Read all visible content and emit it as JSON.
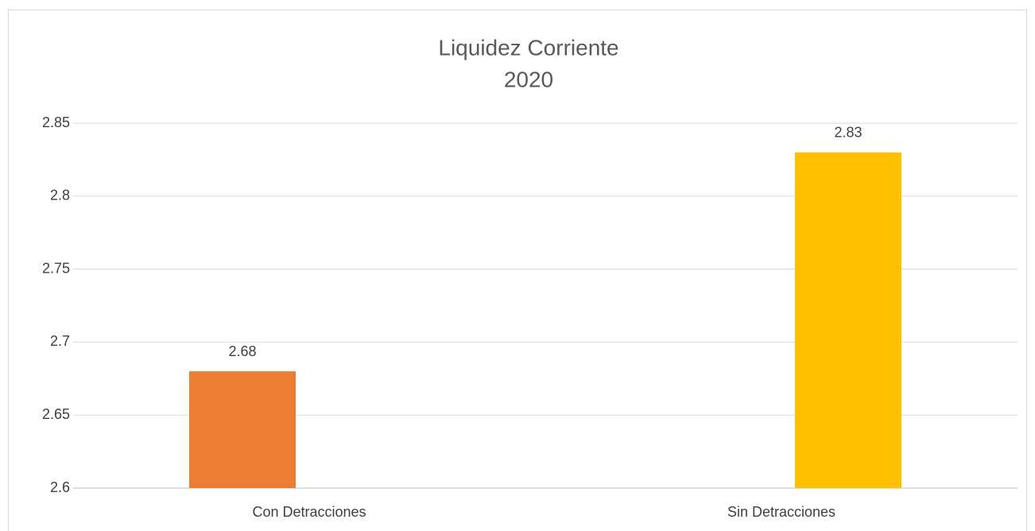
{
  "chart_data": {
    "type": "bar",
    "title": "Liquidez Corriente",
    "subtitle": "2020",
    "categories": [
      "Con Detracciones",
      "Sin Detracciones"
    ],
    "series": [
      {
        "color": "#ed7d31",
        "values": [
          2.68,
          null
        ]
      },
      {
        "color": "#ffc000",
        "values": [
          null,
          2.83
        ]
      }
    ],
    "ylim": [
      2.6,
      2.85
    ],
    "yticks": [
      2.6,
      2.65,
      2.7,
      2.75,
      2.8,
      2.85
    ],
    "grid": true,
    "data_labels": true
  }
}
